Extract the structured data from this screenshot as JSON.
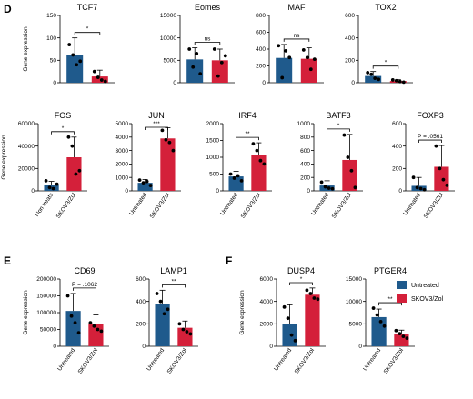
{
  "colors": {
    "untreated": "#1f5a8c",
    "treated": "#d4203a",
    "axis": "#000000"
  },
  "legend": {
    "untreated_label": "Untreated",
    "treated_label": "SKOV3/Zol"
  },
  "panels": [
    {
      "letter": "D"
    },
    {
      "letter": "E"
    },
    {
      "letter": "F"
    }
  ],
  "chart_data": [
    {
      "type": "bar",
      "panel": "D",
      "title": "TCF7",
      "ylabel": "Gene expression",
      "ylim": [
        0,
        150
      ],
      "yticks": [
        "0",
        "50",
        "100",
        "150"
      ],
      "categories": [
        "",
        ""
      ],
      "values": [
        62,
        14
      ],
      "errors": [
        38,
        14
      ],
      "points": [
        [
          85,
          62,
          40,
          48
        ],
        [
          25,
          12,
          6,
          3
        ]
      ],
      "significance": "*"
    },
    {
      "type": "bar",
      "panel": "D",
      "title": "Eomes",
      "ylabel": "",
      "ylim": [
        0,
        15000
      ],
      "yticks": [
        "0",
        "5000",
        "10000",
        "15000"
      ],
      "categories": [
        "",
        ""
      ],
      "values": [
        5200,
        5000
      ],
      "errors": [
        2600,
        2500
      ],
      "points": [
        [
          7500,
          3500,
          6500,
          2000
        ],
        [
          7500,
          1500,
          4500,
          6000
        ]
      ],
      "significance": "ns"
    },
    {
      "type": "bar",
      "panel": "D",
      "title": "MAF",
      "ylabel": "",
      "ylim": [
        0,
        800
      ],
      "yticks": [
        "0",
        "200",
        "400",
        "600",
        "800"
      ],
      "categories": [
        "",
        ""
      ],
      "values": [
        295,
        285
      ],
      "errors": [
        160,
        130
      ],
      "points": [
        [
          440,
          60,
          380,
          300
        ],
        [
          390,
          300,
          160,
          280
        ]
      ],
      "significance": "ns"
    },
    {
      "type": "bar",
      "panel": "D",
      "title": "TOX2",
      "ylabel": "",
      "ylim": [
        0,
        600
      ],
      "yticks": [
        "0",
        "200",
        "400",
        "600"
      ],
      "categories": [
        "",
        ""
      ],
      "values": [
        60,
        15
      ],
      "errors": [
        40,
        12
      ],
      "points": [
        [
          90,
          75,
          40,
          30
        ],
        [
          25,
          18,
          10,
          5
        ]
      ],
      "significance": "*"
    },
    {
      "type": "bar",
      "panel": "D",
      "title": "FOS",
      "ylabel": "Gene expression",
      "ylim": [
        0,
        60000
      ],
      "yticks": [
        "0",
        "20000",
        "40000",
        "60000"
      ],
      "categories": [
        "Non treats",
        "SKOV3/Zol"
      ],
      "values": [
        5000,
        30000
      ],
      "errors": [
        3500,
        18000
      ],
      "points": [
        [
          9000,
          3000,
          2000,
          6000
        ],
        [
          48000,
          40000,
          15000,
          18000
        ]
      ],
      "significance": "*"
    },
    {
      "type": "bar",
      "panel": "D",
      "title": "JUN",
      "ylabel": "",
      "ylim": [
        0,
        5000
      ],
      "yticks": [
        "0",
        "1000",
        "2000",
        "3000",
        "4000",
        "5000"
      ],
      "categories": [
        "Untreated",
        "SKOV3/Zol"
      ],
      "values": [
        600,
        3900
      ],
      "errors": [
        250,
        800
      ],
      "points": [
        [
          800,
          600,
          700,
          400
        ],
        [
          4500,
          3800,
          3600,
          3000
        ]
      ],
      "significance": "***"
    },
    {
      "type": "bar",
      "panel": "D",
      "title": "IRF4",
      "ylabel": "",
      "ylim": [
        0,
        2000
      ],
      "yticks": [
        "0",
        "500",
        "1000",
        "1500",
        "2000"
      ],
      "categories": [
        "Untreated",
        "SKOV3/Zol"
      ],
      "values": [
        430,
        1060
      ],
      "errors": [
        150,
        370
      ],
      "points": [
        [
          500,
          380,
          450,
          300
        ],
        [
          1400,
          1200,
          900,
          800
        ]
      ],
      "significance": "**"
    },
    {
      "type": "bar",
      "panel": "D",
      "title": "BATF3",
      "ylabel": "",
      "ylim": [
        0,
        1000
      ],
      "yticks": [
        "0",
        "200",
        "400",
        "600",
        "800",
        "1000"
      ],
      "categories": [
        "Untreated",
        "SKOV3/Zol"
      ],
      "values": [
        80,
        460
      ],
      "errors": [
        70,
        380
      ],
      "points": [
        [
          130,
          60,
          40,
          30
        ],
        [
          830,
          500,
          300,
          50
        ]
      ],
      "significance": "*"
    },
    {
      "type": "bar",
      "panel": "D",
      "title": "FOXP3",
      "ylabel": "",
      "ylim": [
        0,
        600
      ],
      "yticks": [
        "0",
        "200",
        "400",
        "600"
      ],
      "categories": [
        "Untreated",
        "SKOV3/Zol"
      ],
      "values": [
        45,
        215
      ],
      "errors": [
        75,
        190
      ],
      "points": [
        [
          120,
          30,
          20,
          10
        ],
        [
          400,
          200,
          100,
          50
        ]
      ],
      "significance": "P = .0561"
    },
    {
      "type": "bar",
      "panel": "E",
      "title": "CD69",
      "ylabel": "Gene expression",
      "ylim": [
        0,
        200000
      ],
      "yticks": [
        "0",
        "50000",
        "100000",
        "150000",
        "200000"
      ],
      "categories": [
        "Untreated",
        "SKOV3/Zol"
      ],
      "values": [
        105000,
        65000
      ],
      "errors": [
        52000,
        28000
      ],
      "points": [
        [
          150000,
          90000,
          70000,
          40000
        ],
        [
          70000,
          60000,
          50000,
          45000
        ]
      ],
      "significance": "P = .1062"
    },
    {
      "type": "bar",
      "panel": "E",
      "title": "LAMP1",
      "ylabel": "",
      "ylim": [
        0,
        600
      ],
      "yticks": [
        "0",
        "200",
        "400",
        "600"
      ],
      "categories": [
        "Untreated",
        "SKOV3/Zol"
      ],
      "values": [
        380,
        165
      ],
      "errors": [
        120,
        60
      ],
      "points": [
        [
          470,
          400,
          290,
          330
        ],
        [
          200,
          150,
          130,
          110
        ]
      ],
      "significance": "**"
    },
    {
      "type": "bar",
      "panel": "F",
      "title": "DUSP4",
      "ylabel": "Gene expression",
      "ylim": [
        0,
        6000
      ],
      "yticks": [
        "0",
        "2000",
        "4000",
        "6000"
      ],
      "categories": [
        "Untreated",
        "SKOV3/Zol"
      ],
      "values": [
        2000,
        4600
      ],
      "errors": [
        1700,
        600
      ],
      "points": [
        [
          3500,
          2500,
          1000,
          500
        ],
        [
          5000,
          4700,
          4300,
          4200
        ]
      ],
      "significance": "*"
    },
    {
      "type": "bar",
      "panel": "F",
      "title": "PTGER4",
      "ylabel": "",
      "ylim": [
        0,
        15000
      ],
      "yticks": [
        "0",
        "5000",
        "10000",
        "15000"
      ],
      "categories": [
        "Untreated",
        "SKOV3/Zol"
      ],
      "values": [
        6500,
        2700
      ],
      "errors": [
        1800,
        900
      ],
      "points": [
        [
          8500,
          7000,
          5500,
          4500
        ],
        [
          3500,
          2800,
          2200,
          1800
        ]
      ],
      "significance": "**"
    }
  ]
}
